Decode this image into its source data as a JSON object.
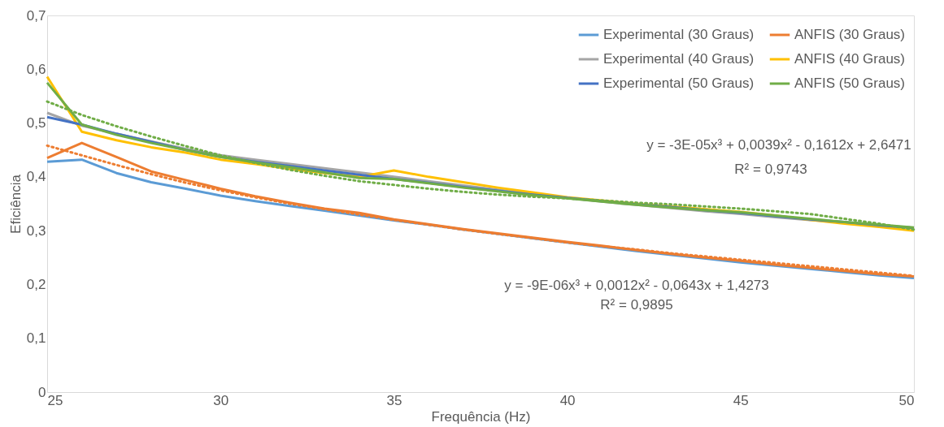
{
  "chart_data": {
    "type": "line",
    "xlabel": "Frequência (Hz)",
    "ylabel": "Eficiência",
    "x": [
      25,
      26,
      27,
      28,
      29,
      30,
      31,
      32,
      33,
      34,
      35,
      36,
      37,
      38,
      39,
      40,
      41,
      42,
      43,
      44,
      45,
      46,
      47,
      48,
      49,
      50
    ],
    "xlim": [
      25,
      50
    ],
    "xticks": [
      25,
      30,
      35,
      40,
      45,
      50
    ],
    "ylim": [
      0,
      0.7
    ],
    "yticks": [
      {
        "value": 0,
        "label": "0"
      },
      {
        "value": 0.1,
        "label": "0,1"
      },
      {
        "value": 0.2,
        "label": "0,2"
      },
      {
        "value": 0.3,
        "label": "0,3"
      },
      {
        "value": 0.4,
        "label": "0,4"
      },
      {
        "value": 0.5,
        "label": "0,5"
      },
      {
        "value": 0.6,
        "label": "0,6"
      },
      {
        "value": 0.7,
        "label": "0,7"
      }
    ],
    "grid": false,
    "legend": "top right",
    "marker": "none",
    "series": [
      {
        "name": "Experimental (30 Graus)",
        "color": "#5b9bd5",
        "values": [
          0.428,
          0.432,
          0.407,
          0.39,
          0.378,
          0.365,
          0.355,
          0.346,
          0.337,
          0.328,
          0.319,
          0.311,
          0.302,
          0.294,
          0.286,
          0.278,
          0.27,
          0.262,
          0.255,
          0.248,
          0.241,
          0.235,
          0.229,
          0.223,
          0.217,
          0.212
        ]
      },
      {
        "name": "ANFIS (30 Graus)",
        "color": "#ed7d31",
        "values": [
          0.435,
          0.463,
          0.437,
          0.41,
          0.394,
          0.378,
          0.364,
          0.352,
          0.341,
          0.333,
          0.321,
          0.312,
          0.303,
          0.295,
          0.287,
          0.279,
          0.272,
          0.264,
          0.257,
          0.25,
          0.244,
          0.237,
          0.231,
          0.225,
          0.219,
          0.215
        ]
      },
      {
        "name": "Experimental (40 Graus)",
        "color": "#a5a5a5",
        "values": [
          0.519,
          0.495,
          0.48,
          0.466,
          0.452,
          0.44,
          0.432,
          0.424,
          0.416,
          0.408,
          0.4,
          0.392,
          0.384,
          0.376,
          0.368,
          0.361,
          0.354,
          0.348,
          0.342,
          0.336,
          0.331,
          0.325,
          0.32,
          0.315,
          0.31,
          0.305
        ]
      },
      {
        "name": "ANFIS (40 Graus)",
        "color": "#ffc000",
        "values": [
          0.586,
          0.484,
          0.468,
          0.455,
          0.445,
          0.432,
          0.424,
          0.415,
          0.407,
          0.4,
          0.412,
          0.4,
          0.39,
          0.38,
          0.371,
          0.362,
          0.356,
          0.35,
          0.345,
          0.34,
          0.335,
          0.328,
          0.32,
          0.313,
          0.307,
          0.3
        ]
      },
      {
        "name": "Experimental (50 Graus)",
        "color": "#4472c4",
        "values": [
          0.511,
          0.497,
          0.48,
          0.465,
          0.45,
          0.437,
          0.428,
          0.42,
          0.412,
          0.404,
          0.396,
          0.389,
          0.381,
          0.374,
          0.367,
          0.361,
          0.355,
          0.349,
          0.344,
          0.338,
          0.333,
          0.327,
          0.321,
          0.316,
          0.31,
          0.305
        ]
      },
      {
        "name": "ANFIS (50 Graus)",
        "color": "#70ad47",
        "values": [
          0.575,
          0.497,
          0.478,
          0.463,
          0.45,
          0.437,
          0.427,
          0.418,
          0.408,
          0.398,
          0.396,
          0.388,
          0.38,
          0.373,
          0.366,
          0.36,
          0.354,
          0.348,
          0.343,
          0.338,
          0.334,
          0.328,
          0.322,
          0.316,
          0.311,
          0.306
        ]
      },
      {
        "type": "line",
        "line_style": "dotted",
        "color": "#70ad47",
        "values": [
          0.54,
          0.515,
          0.494,
          0.475,
          0.457,
          0.44,
          0.426,
          0.413,
          0.402,
          0.392,
          0.385,
          0.378,
          0.372,
          0.367,
          0.363,
          0.36,
          0.356,
          0.352,
          0.349,
          0.345,
          0.341,
          0.336,
          0.331,
          0.322,
          0.313,
          0.302
        ]
      },
      {
        "type": "line",
        "line_style": "dotted",
        "color": "#ed7d31",
        "values": [
          0.458,
          0.44,
          0.422,
          0.405,
          0.389,
          0.375,
          0.362,
          0.35,
          0.34,
          0.33,
          0.32,
          0.311,
          0.302,
          0.294,
          0.286,
          0.278,
          0.271,
          0.265,
          0.258,
          0.252,
          0.246,
          0.24,
          0.234,
          0.228,
          0.222,
          0.216
        ]
      }
    ],
    "annotations": [
      "y = -3E-05x³ + 0,0039x² - 0,1612x + 2,6471",
      "R² = 0,9743",
      "y = -9E-06x³ + 0,0012x² - 0,0643x + 1,4273",
      "R² = 0,9895"
    ]
  }
}
